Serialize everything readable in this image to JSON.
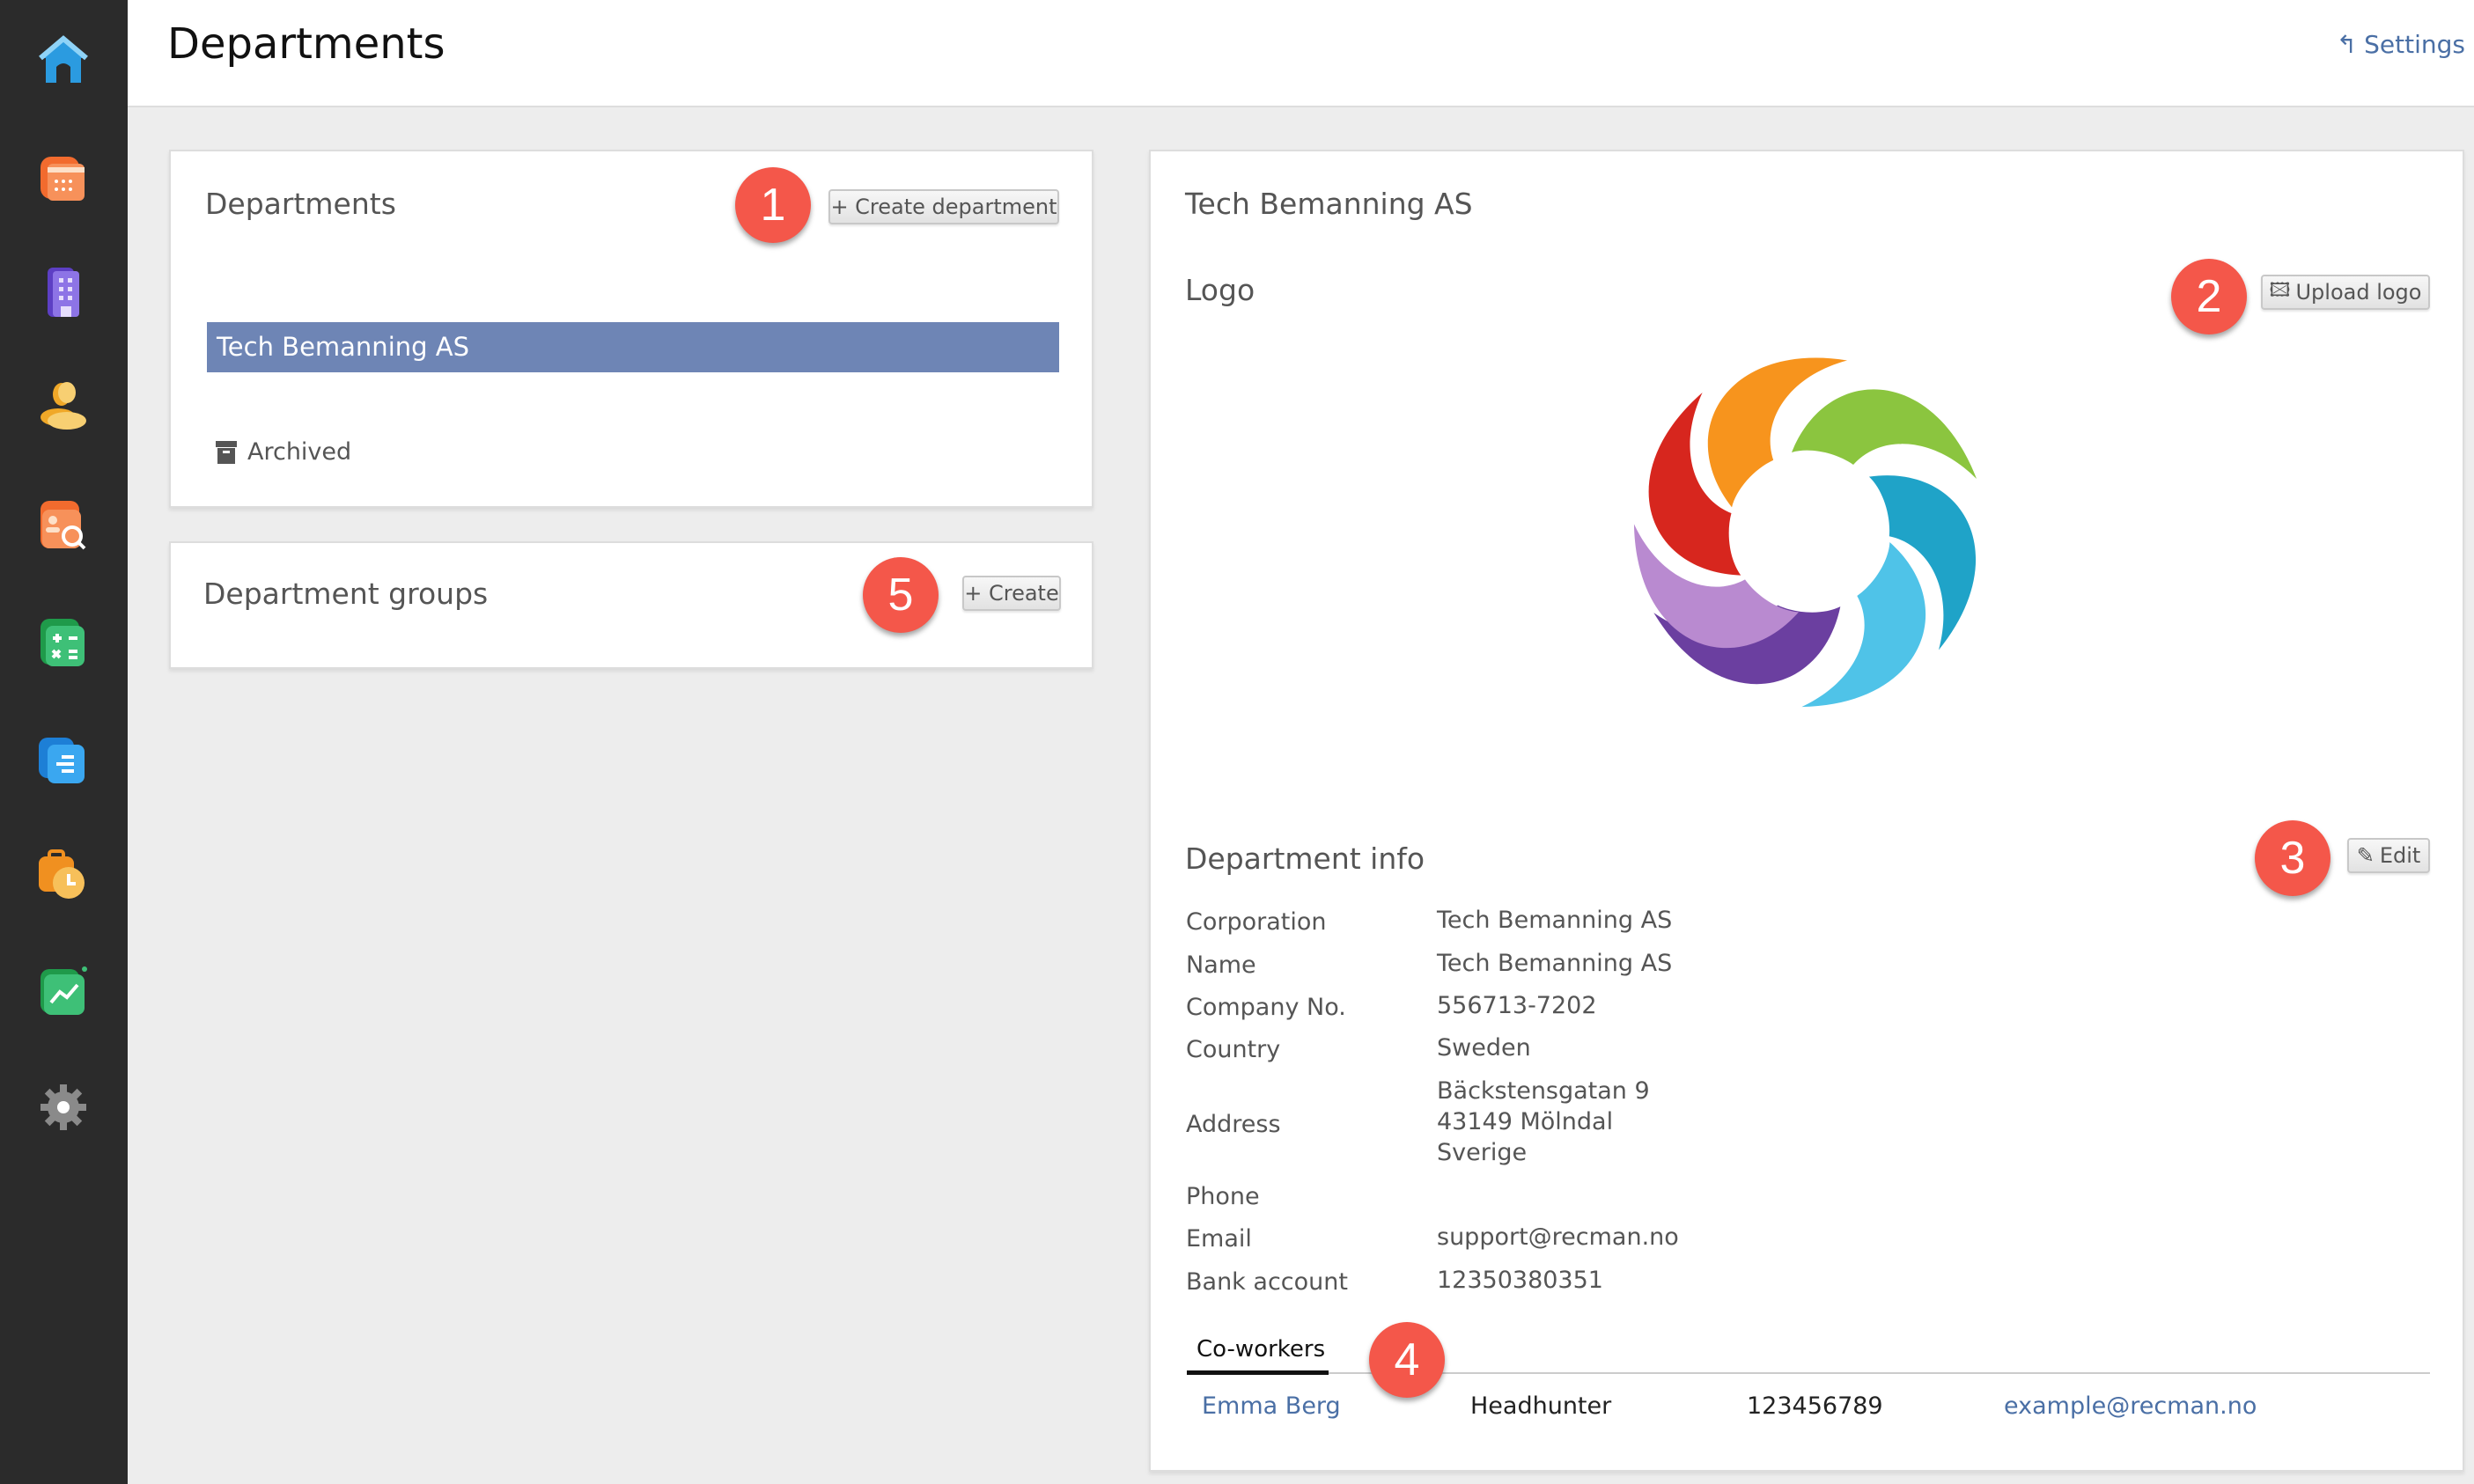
{
  "sidebar": {
    "items": [
      {
        "icon": "home-icon",
        "color": "#2b9be0"
      },
      {
        "icon": "calendar-icon",
        "color": "#f07a3a"
      },
      {
        "icon": "building-icon",
        "color": "#7b5fd6"
      },
      {
        "icon": "people-icon",
        "color": "#f0b44a"
      },
      {
        "icon": "candidate-search-icon",
        "color": "#f07a3a"
      },
      {
        "icon": "calculator-icon",
        "color": "#27a85a"
      },
      {
        "icon": "document-list-icon",
        "color": "#2b8ee0"
      },
      {
        "icon": "timesheet-icon",
        "color": "#f0a030"
      },
      {
        "icon": "chart-icon",
        "color": "#27a85a"
      },
      {
        "icon": "gear-icon",
        "color": "#888888"
      }
    ]
  },
  "header": {
    "title": "Departments",
    "settings_label": "Settings"
  },
  "departments_card": {
    "title": "Departments",
    "create_label": "+ Create department",
    "items": [
      "Tech Bemanning AS"
    ],
    "archived_label": "Archived",
    "selected_color": "#6e85b5"
  },
  "groups_card": {
    "title": "Department groups",
    "create_label": "+ Create"
  },
  "detail": {
    "title": "Tech Bemanning AS",
    "logo_heading": "Logo",
    "upload_logo_label": "Upload logo",
    "info_heading": "Department info",
    "edit_label": "Edit",
    "fields": {
      "corporation": {
        "label": "Corporation",
        "value": "Tech Bemanning AS"
      },
      "name": {
        "label": "Name",
        "value": "Tech Bemanning AS"
      },
      "company_no": {
        "label": "Company No.",
        "value": "556713-7202"
      },
      "country": {
        "label": "Country",
        "value": "Sweden"
      },
      "address": {
        "label": "Address",
        "lines": [
          "Bäckstensgatan 9",
          "43149 Mölndal",
          "Sverige"
        ]
      },
      "phone": {
        "label": "Phone",
        "value": ""
      },
      "email": {
        "label": "Email",
        "value": "support@recman.no"
      },
      "bank": {
        "label": "Bank account",
        "value": "12350380351"
      }
    },
    "coworkers_tab": "Co-workers",
    "coworkers": [
      {
        "name": "Emma Berg",
        "role": "Headhunter",
        "phone": "123456789",
        "email": "example@recman.no"
      }
    ]
  },
  "annotations": [
    "1",
    "2",
    "3",
    "4",
    "5"
  ],
  "colors": {
    "badge": "#f4574a",
    "link": "#4a6fa5"
  }
}
